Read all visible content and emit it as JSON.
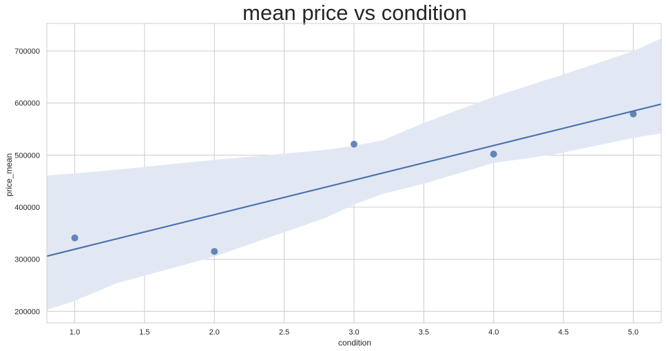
{
  "chart_data": {
    "type": "scatter",
    "title": "mean price vs condition",
    "xlabel": "condition",
    "ylabel": "price_mean",
    "xlim": [
      0.8,
      5.2
    ],
    "ylim": [
      178000,
      753000
    ],
    "x_ticks": [
      "1.0",
      "1.5",
      "2.0",
      "2.5",
      "3.0",
      "3.5",
      "4.0",
      "4.5",
      "5.0"
    ],
    "y_ticks": [
      "200000",
      "300000",
      "400000",
      "500000",
      "600000",
      "700000"
    ],
    "grid": true,
    "series": [
      {
        "x": [
          1,
          2,
          3,
          4,
          5
        ],
        "y": [
          341000,
          315000,
          521000,
          502000,
          579000
        ]
      }
    ],
    "regression_line": {
      "x": [
        0.8,
        5.2
      ],
      "y": [
        306000,
        598000
      ]
    },
    "confidence_band": {
      "x": [
        0.8,
        1.0,
        1.3,
        2.0,
        2.8,
        3.0,
        3.2,
        3.5,
        4.0,
        4.3,
        4.5,
        5.0,
        5.2
      ],
      "upper": [
        461000,
        465000,
        472000,
        491000,
        510000,
        518000,
        528000,
        562000,
        612000,
        638000,
        655000,
        700000,
        724000
      ],
      "lower": [
        203000,
        220000,
        254000,
        305000,
        380000,
        405000,
        425000,
        445000,
        485000,
        496000,
        505000,
        533000,
        542000
      ]
    },
    "colors": {
      "line": "#4c72b0",
      "points": "#4c72b0",
      "band": "#e2e8f3",
      "grid": "#cccccc",
      "frame": "#cccccc"
    }
  }
}
